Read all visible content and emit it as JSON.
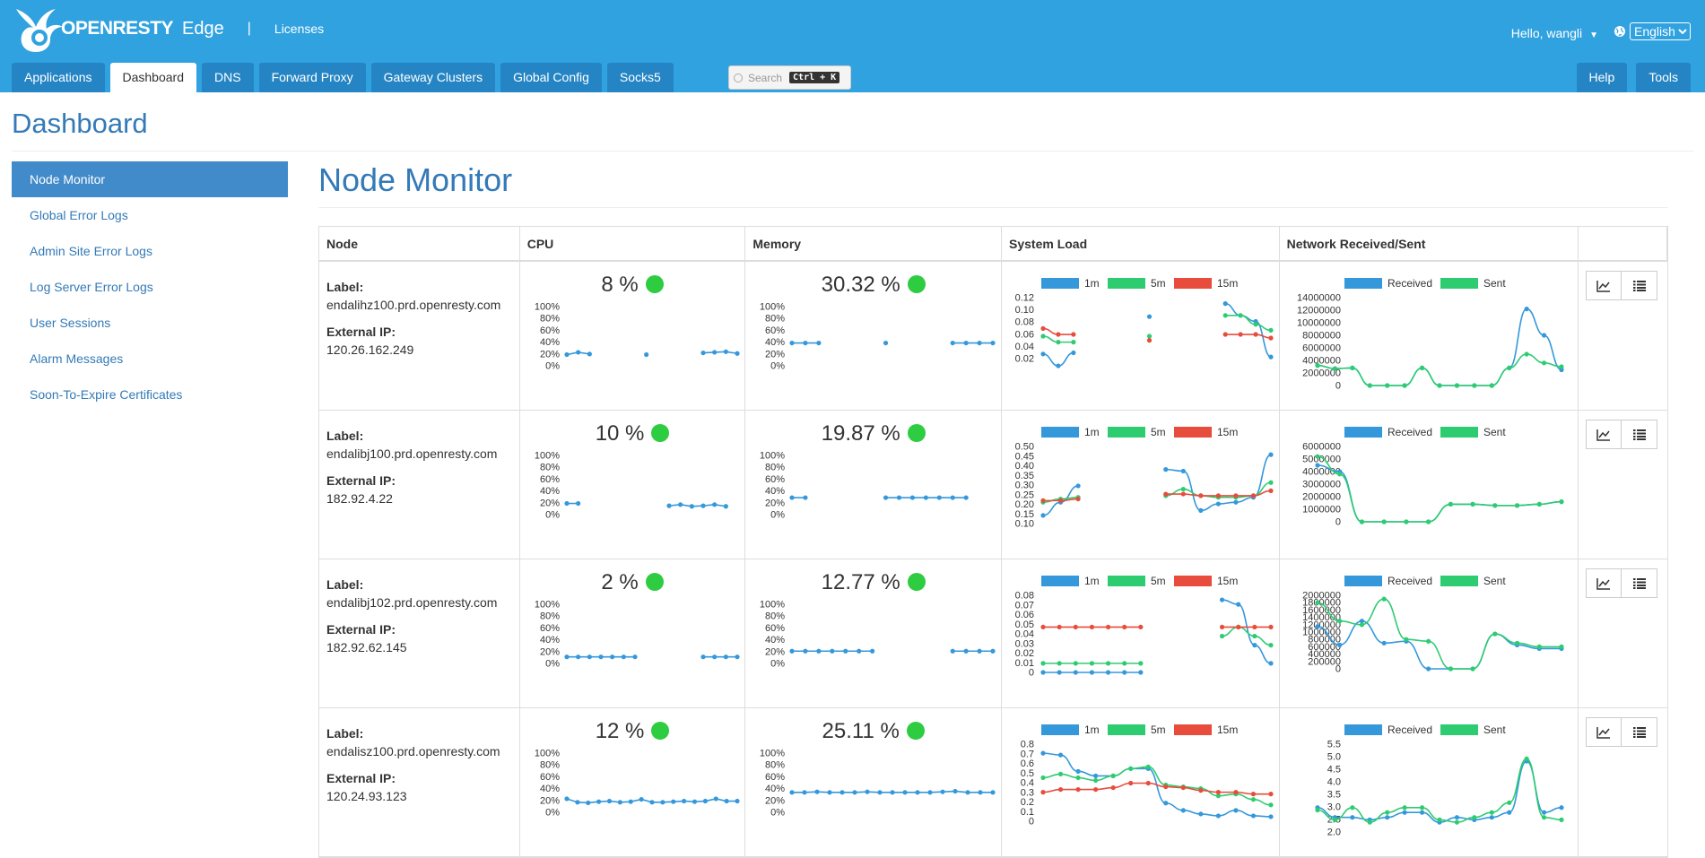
{
  "header": {
    "brand": "OPENRESTY",
    "product": "Edge",
    "separator": "|",
    "licenses": "Licenses",
    "greeting": "Hello, wangli",
    "language": "English"
  },
  "tabs": [
    "Applications",
    "Dashboard",
    "DNS",
    "Forward Proxy",
    "Gateway Clusters",
    "Global Config",
    "Socks5"
  ],
  "active_tab": "Dashboard",
  "search": {
    "placeholder": "Search",
    "shortcut": "Ctrl + K"
  },
  "right_tabs": [
    "Help",
    "Tools"
  ],
  "page_title": "Dashboard",
  "sidebar": [
    "Node Monitor",
    "Global Error Logs",
    "Admin Site Error Logs",
    "Log Server Error Logs",
    "User Sessions",
    "Alarm Messages",
    "Soon-To-Expire Certificates"
  ],
  "main_title": "Node Monitor",
  "columns": [
    "Node",
    "CPU",
    "Memory",
    "System Load",
    "Network Received/Sent"
  ],
  "info_labels": {
    "label": "Label:",
    "ip": "External IP:"
  },
  "colors": {
    "blue": "#3498db",
    "green": "#2ecc71",
    "red": "#e74c3c",
    "status_ok": "#2ecc40"
  },
  "chart_data": [
    {
      "node": "endalihz100.prd.openresty.com",
      "ip": "120.26.162.249",
      "cpu": {
        "value": "8 %",
        "yticks": [
          "100%",
          "80%",
          "60%",
          "40%",
          "20%",
          "0%"
        ],
        "points": [
          10,
          14,
          11,
          null,
          null,
          null,
          null,
          10,
          null,
          null,
          null,
          null,
          13,
          14,
          15,
          12
        ]
      },
      "memory": {
        "value": "30.32 %",
        "yticks": [
          "100%",
          "80%",
          "60%",
          "40%",
          "20%",
          "0%"
        ],
        "points": [
          30,
          30,
          30,
          null,
          null,
          null,
          null,
          30,
          null,
          null,
          null,
          null,
          30,
          30,
          30,
          30
        ]
      },
      "load": {
        "yticks": [
          "0.12",
          "0.10",
          "0.08",
          "0.06",
          "0.04",
          "0.02"
        ],
        "ymin": 0,
        "ymax": 0.13,
        "series": [
          {
            "name": "1m",
            "values": [
              0.035,
              0.015,
              0.037,
              null,
              null,
              null,
              null,
              0.098,
              null,
              null,
              null,
              null,
              0.12,
              0.1,
              0.09,
              0.03
            ]
          },
          {
            "name": "5m",
            "values": [
              0.065,
              0.055,
              0.055,
              null,
              null,
              null,
              null,
              0.065,
              null,
              null,
              null,
              null,
              0.1,
              0.1,
              0.085,
              0.075
            ]
          },
          {
            "name": "15m",
            "values": [
              0.078,
              0.068,
              0.068,
              null,
              null,
              null,
              null,
              0.058,
              null,
              null,
              null,
              null,
              0.068,
              0.068,
              0.068,
              0.062
            ]
          }
        ]
      },
      "network": {
        "yticks": [
          "14000000",
          "12000000",
          "10000000",
          "8000000",
          "6000000",
          "4000000",
          "2000000",
          "0"
        ],
        "ymin": 0,
        "ymax": 14000000,
        "series": [
          {
            "name": "Received",
            "values": [
              3200000,
              2700000,
              2800000,
              0,
              0,
              0,
              2800000,
              0,
              0,
              0,
              0,
              2800000,
              12200000,
              8000000,
              2500000
            ]
          },
          {
            "name": "Sent",
            "values": [
              3200000,
              2700000,
              2800000,
              0,
              0,
              0,
              2800000,
              0,
              0,
              0,
              0,
              2800000,
              5000000,
              3600000,
              3000000
            ]
          }
        ]
      }
    },
    {
      "node": "endalibj100.prd.openresty.com",
      "ip": "182.92.4.22",
      "cpu": {
        "value": "10 %",
        "yticks": [
          "100%",
          "80%",
          "60%",
          "40%",
          "20%",
          "0%"
        ],
        "points": [
          10,
          10,
          null,
          null,
          null,
          null,
          null,
          null,
          null,
          6,
          8,
          5,
          6,
          8,
          5,
          null
        ]
      },
      "memory": {
        "value": "19.87 %",
        "yticks": [
          "100%",
          "80%",
          "60%",
          "40%",
          "20%",
          "0%"
        ],
        "points": [
          20,
          20,
          null,
          null,
          null,
          null,
          null,
          20,
          20,
          20,
          20,
          20,
          20,
          20,
          null,
          null
        ]
      },
      "load": {
        "yticks": [
          "0.50",
          "0.45",
          "0.40",
          "0.35",
          "0.30",
          "0.25",
          "0.20",
          "0.15",
          "0.10"
        ],
        "ymin": 0.05,
        "ymax": 0.52,
        "series": [
          {
            "name": "1m",
            "values": [
              0.1,
              0.18,
              0.28,
              null,
              null,
              null,
              null,
              0.38,
              0.37,
              0.13,
              0.17,
              0.18,
              0.21,
              0.47
            ]
          },
          {
            "name": "5m",
            "values": [
              0.18,
              0.2,
              0.21,
              null,
              null,
              null,
              null,
              0.22,
              0.26,
              0.22,
              0.21,
              0.21,
              0.22,
              0.3
            ]
          },
          {
            "name": "15m",
            "values": [
              0.19,
              0.19,
              0.2,
              null,
              null,
              null,
              null,
              0.23,
              0.23,
              0.22,
              0.22,
              0.22,
              0.22,
              0.25
            ]
          }
        ]
      },
      "network": {
        "yticks": [
          "6000000",
          "5000000",
          "4000000",
          "3000000",
          "2000000",
          "1000000",
          "0"
        ],
        "ymin": 0,
        "ymax": 6000000,
        "series": [
          {
            "name": "Received",
            "values": [
              4500000,
              4000000,
              0,
              0,
              0,
              0,
              1400000,
              1400000,
              1300000,
              1300000,
              1400000,
              1600000
            ]
          },
          {
            "name": "Sent",
            "values": [
              5200000,
              3800000,
              0,
              0,
              0,
              0,
              1400000,
              1400000,
              1300000,
              1300000,
              1400000,
              1600000
            ]
          }
        ]
      }
    },
    {
      "node": "endalibj102.prd.openresty.com",
      "ip": "182.92.62.145",
      "cpu": {
        "value": "2 %",
        "yticks": [
          "100%",
          "80%",
          "60%",
          "40%",
          "20%",
          "0%"
        ],
        "points": [
          2,
          2,
          2,
          2,
          2,
          2,
          2,
          null,
          null,
          null,
          null,
          null,
          2,
          2,
          2,
          2
        ]
      },
      "memory": {
        "value": "12.77 %",
        "yticks": [
          "100%",
          "80%",
          "60%",
          "40%",
          "20%",
          "0%"
        ],
        "points": [
          12,
          12,
          12,
          12,
          12,
          12,
          12,
          null,
          null,
          null,
          null,
          null,
          12,
          12,
          12,
          12
        ]
      },
      "load": {
        "yticks": [
          "0.08",
          "0.07",
          "0.06",
          "0.05",
          "0.04",
          "0.03",
          "0.02",
          "0.01",
          "0"
        ],
        "ymin": 0,
        "ymax": 0.085,
        "series": [
          {
            "name": "1m",
            "values": [
              0,
              0,
              0,
              0,
              0,
              0,
              0,
              null,
              null,
              null,
              null,
              0.08,
              0.075,
              0.03,
              0.01
            ]
          },
          {
            "name": "5m",
            "values": [
              0.01,
              0.01,
              0.01,
              0.01,
              0.01,
              0.01,
              0.01,
              null,
              null,
              null,
              null,
              0.04,
              0.05,
              0.04,
              0.03
            ]
          },
          {
            "name": "15m",
            "values": [
              0.05,
              0.05,
              0.05,
              0.05,
              0.05,
              0.05,
              0.05,
              null,
              null,
              null,
              null,
              0.05,
              0.05,
              0.05,
              0.05
            ]
          }
        ]
      },
      "network": {
        "yticks": [
          "2000000",
          "1800000",
          "1600000",
          "1400000",
          "1200000",
          "1000000",
          "800000",
          "600000",
          "400000",
          "200000",
          "0"
        ],
        "ymin": 0,
        "ymax": 2000000,
        "series": [
          {
            "name": "Received",
            "values": [
              1150000,
              650000,
              1300000,
              700000,
              750000,
              0,
              0,
              0,
              950000,
              650000,
              550000,
              550000
            ]
          },
          {
            "name": "Sent",
            "values": [
              1800000,
              1300000,
              1200000,
              1900000,
              800000,
              750000,
              0,
              0,
              950000,
              700000,
              600000,
              600000
            ]
          }
        ]
      }
    },
    {
      "node": "endalisz100.prd.openresty.com",
      "ip": "120.24.93.123",
      "cpu": {
        "value": "12 %",
        "yticks": [
          "100%",
          "80%",
          "60%",
          "40%",
          "20%",
          "0%"
        ],
        "points": [
          14,
          8,
          7,
          9,
          10,
          8,
          9,
          13,
          8,
          8,
          9,
          10,
          9,
          10,
          14,
          10,
          10
        ]
      },
      "memory": {
        "value": "25.11 %",
        "yticks": [
          "100%",
          "80%",
          "60%",
          "40%",
          "20%",
          "0%"
        ],
        "points": [
          25,
          25,
          26,
          25,
          25,
          25,
          26,
          25,
          25,
          25,
          25,
          25,
          26,
          27,
          25,
          25,
          25
        ]
      },
      "load": {
        "yticks": [
          "0.8",
          "0.7",
          "0.6",
          "0.5",
          "0.4",
          "0.3",
          "0.2",
          "0.1",
          "0"
        ],
        "ymin": 0,
        "ymax": 0.85,
        "series": [
          {
            "name": "1m",
            "values": [
              0.75,
              0.73,
              0.55,
              0.5,
              0.5,
              0.58,
              0.58,
              0.2,
              0.12,
              0.08,
              0.06,
              0.12,
              0.06,
              0.05
            ]
          },
          {
            "name": "5m",
            "values": [
              0.48,
              0.52,
              0.48,
              0.45,
              0.5,
              0.58,
              0.6,
              0.4,
              0.38,
              0.36,
              0.28,
              0.3,
              0.24,
              0.18
            ]
          },
          {
            "name": "15m",
            "values": [
              0.32,
              0.35,
              0.35,
              0.35,
              0.37,
              0.42,
              0.42,
              0.38,
              0.37,
              0.34,
              0.32,
              0.32,
              0.3,
              0.3
            ]
          }
        ]
      },
      "network": {
        "yticks": [
          "5.5",
          "5.0",
          "4.5",
          "4.0",
          "3.5",
          "3.0",
          "2.5",
          "2.0"
        ],
        "ymin": 2.0,
        "ymax": 5.6,
        "series": [
          {
            "name": "Received",
            "values": [
              3.0,
              2.6,
              2.6,
              2.5,
              2.6,
              2.8,
              2.8,
              2.4,
              2.6,
              2.5,
              2.6,
              2.8,
              4.9,
              2.8,
              3.0
            ]
          },
          {
            "name": "Sent",
            "values": [
              2.9,
              2.5,
              3.0,
              2.4,
              2.8,
              3.0,
              3.0,
              2.5,
              2.4,
              2.6,
              2.8,
              3.2,
              5.0,
              2.6,
              2.5
            ]
          }
        ]
      }
    }
  ]
}
